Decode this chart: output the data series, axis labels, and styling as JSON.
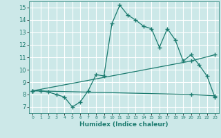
{
  "bg_color": "#cce8e8",
  "grid_color": "#b0d8d8",
  "line_color": "#1a7a6e",
  "xlabel": "Humidex (Indice chaleur)",
  "xlim": [
    -0.5,
    23.5
  ],
  "ylim": [
    6.5,
    15.5
  ],
  "yticks": [
    7,
    8,
    9,
    10,
    11,
    12,
    13,
    14,
    15
  ],
  "xticks": [
    0,
    1,
    2,
    3,
    4,
    5,
    6,
    7,
    8,
    9,
    10,
    11,
    12,
    13,
    14,
    15,
    16,
    17,
    18,
    19,
    20,
    21,
    22,
    23
  ],
  "series1_x": [
    0,
    1,
    2,
    3,
    4,
    5,
    6,
    7,
    8,
    9,
    10,
    11,
    12,
    13,
    14,
    15,
    16,
    17,
    18,
    19,
    20,
    21,
    22,
    23
  ],
  "series1_y": [
    8.3,
    8.3,
    8.2,
    8.0,
    7.8,
    7.0,
    7.4,
    8.3,
    9.6,
    9.5,
    13.7,
    15.2,
    14.4,
    14.0,
    13.5,
    13.3,
    11.8,
    13.3,
    12.4,
    10.7,
    11.2,
    10.4,
    9.5,
    7.8
  ],
  "series2_x": [
    0,
    20,
    23
  ],
  "series2_y": [
    8.3,
    10.7,
    11.2
  ],
  "series3_x": [
    0,
    20,
    23
  ],
  "series3_y": [
    8.3,
    8.0,
    7.9
  ]
}
